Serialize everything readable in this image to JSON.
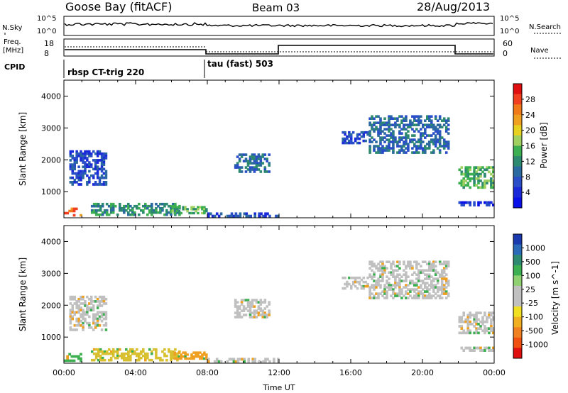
{
  "header": {
    "station": "Goose Bay (fitACF)",
    "beam": "Beam 03",
    "date": "28/Aug/2013"
  },
  "top_panels": {
    "nsky_label": "N.Sky",
    "nsky_tick_high": "10^5",
    "nsky_tick_low": "10^0",
    "nsearch_label": "N.Search",
    "nsearch_tick_high": "10^5",
    "nsearch_tick_low": "10^0",
    "freq_label": "Freq.",
    "freq_unit": "[MHz]",
    "freq_tick_high": "18",
    "freq_tick_low": "8",
    "nave_label": "Nave",
    "nave_tick_high": "60",
    "nave_tick_low": "0",
    "cpid_label": "CPID",
    "cpid_segments": [
      {
        "name": "rbsp CT-trig 220",
        "start_hour": 0,
        "end_hour": 8
      },
      {
        "name": "tau (fast) 503",
        "start_hour": 8,
        "end_hour": 24
      }
    ]
  },
  "chart_data": [
    {
      "type": "heatmap",
      "name_key": "power",
      "xlabel": "",
      "ylabel": "Slant Range [km]",
      "x_range_hours": [
        0,
        24
      ],
      "ylim": [
        180,
        4500
      ],
      "y_ticks": [
        "1000",
        "2000",
        "3000",
        "4000"
      ],
      "colorbar_label": "Power [dB]",
      "colorbar_ticks": [
        "28",
        "24",
        "20",
        "16",
        "12",
        "8",
        "4"
      ],
      "colorbar_colors": [
        "#e01010",
        "#f04020",
        "#f07a1a",
        "#f0a020",
        "#e8d020",
        "#9fd060",
        "#3cb050",
        "#2d8a70",
        "#2a6aa0",
        "#2a4ec8",
        "#1a2ad8",
        "#0a10e8"
      ],
      "regions": [
        {
          "x": [
            0.0,
            1.0
          ],
          "y": [
            230,
            500
          ],
          "level": 0.85
        },
        {
          "x": [
            0.3,
            2.4
          ],
          "y": [
            1200,
            2300
          ],
          "level": 0.2
        },
        {
          "x": [
            1.5,
            6.5
          ],
          "y": [
            250,
            650
          ],
          "level": 0.35
        },
        {
          "x": [
            6.0,
            8.0
          ],
          "y": [
            300,
            550
          ],
          "level": 0.45
        },
        {
          "x": [
            8.0,
            12.0
          ],
          "y": [
            200,
            350
          ],
          "level": 0.15
        },
        {
          "x": [
            9.5,
            11.5
          ],
          "y": [
            1600,
            2200
          ],
          "level": 0.3
        },
        {
          "x": [
            15.5,
            17.0
          ],
          "y": [
            2500,
            2900
          ],
          "level": 0.15
        },
        {
          "x": [
            17.0,
            21.5
          ],
          "y": [
            2200,
            3400
          ],
          "level": 0.25
        },
        {
          "x": [
            22.0,
            24.0
          ],
          "y": [
            1100,
            1800
          ],
          "level": 0.45
        },
        {
          "x": [
            22.0,
            24.0
          ],
          "y": [
            550,
            700
          ],
          "level": 0.1
        }
      ]
    },
    {
      "type": "heatmap",
      "name_key": "velocity",
      "xlabel": "Time UT",
      "ylabel": "Slant Range [km]",
      "x_range_hours": [
        0,
        24
      ],
      "x_ticks": [
        "00:00",
        "04:00",
        "08:00",
        "12:00",
        "16:00",
        "20:00",
        "00:00"
      ],
      "ylim": [
        180,
        4500
      ],
      "y_ticks": [
        "1000",
        "2000",
        "3000",
        "4000"
      ],
      "colorbar_label": "Velocity [m s^-1]",
      "colorbar_ticks": [
        "1000",
        "500",
        "100",
        "25",
        "-25",
        "-100",
        "-500",
        "-1000"
      ],
      "colorbar_colors": [
        "#1a3ab0",
        "#2a6ab8",
        "#2d8a70",
        "#3cb050",
        "#8fd070",
        "#c0c0c0",
        "#c0c0c0",
        "#f0e020",
        "#f0b020",
        "#f08020",
        "#f05010",
        "#e01010"
      ],
      "regions": [
        {
          "x": [
            0.0,
            1.0
          ],
          "y": [
            230,
            500
          ],
          "color": "#3cb050"
        },
        {
          "x": [
            0.3,
            2.4
          ],
          "y": [
            1200,
            2300
          ],
          "color": "#c0c0c0"
        },
        {
          "x": [
            1.5,
            6.5
          ],
          "y": [
            250,
            650
          ],
          "color": "#d8c030"
        },
        {
          "x": [
            6.0,
            8.0
          ],
          "y": [
            300,
            550
          ],
          "color": "#f0a020"
        },
        {
          "x": [
            8.0,
            12.0
          ],
          "y": [
            200,
            350
          ],
          "color": "#c0c0c0"
        },
        {
          "x": [
            9.5,
            11.5
          ],
          "y": [
            1600,
            2200
          ],
          "color": "#c0c0c0"
        },
        {
          "x": [
            15.5,
            17.0
          ],
          "y": [
            2500,
            2900
          ],
          "color": "#c0c0c0"
        },
        {
          "x": [
            17.0,
            21.5
          ],
          "y": [
            2200,
            3400
          ],
          "color": "#c0c0c0"
        },
        {
          "x": [
            22.0,
            24.0
          ],
          "y": [
            1100,
            1800
          ],
          "color": "#c0c0c0"
        },
        {
          "x": [
            22.0,
            24.0
          ],
          "y": [
            550,
            700
          ],
          "color": "#c0c0c0"
        }
      ]
    }
  ]
}
